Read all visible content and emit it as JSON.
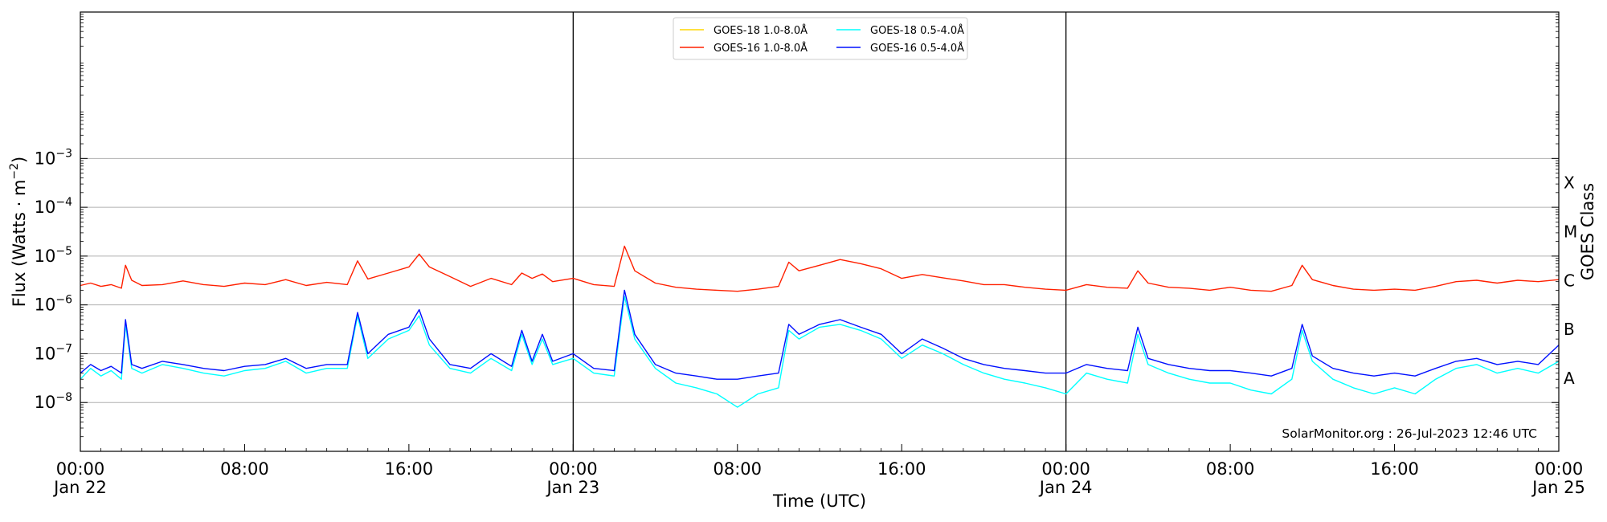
{
  "chart_data": {
    "type": "line",
    "title": "",
    "xlabel": "Time (UTC)",
    "ylabel": "Flux (Watts · m",
    "ylabel_sup": "−2",
    "ylabel_close": ")",
    "y2label": "GOES Class",
    "yscale": "log",
    "ylim_exponents": [
      -9,
      0
    ],
    "xlim_hours": [
      0,
      72
    ],
    "x_ticks": [
      {
        "hour": 0,
        "time": "00:00",
        "date": "Jan 22"
      },
      {
        "hour": 8,
        "time": "08:00",
        "date": ""
      },
      {
        "hour": 16,
        "time": "16:00",
        "date": ""
      },
      {
        "hour": 24,
        "time": "00:00",
        "date": "Jan 23"
      },
      {
        "hour": 32,
        "time": "08:00",
        "date": ""
      },
      {
        "hour": 40,
        "time": "16:00",
        "date": ""
      },
      {
        "hour": 48,
        "time": "00:00",
        "date": "Jan 24"
      },
      {
        "hour": 56,
        "time": "08:00",
        "date": ""
      },
      {
        "hour": 64,
        "time": "16:00",
        "date": ""
      },
      {
        "hour": 72,
        "time": "00:00",
        "date": "Jan 25"
      }
    ],
    "y_ticks": [
      {
        "exp": -8,
        "label": "10",
        "sup": "−8"
      },
      {
        "exp": -7,
        "label": "10",
        "sup": "−7"
      },
      {
        "exp": -6,
        "label": "10",
        "sup": "−6"
      },
      {
        "exp": -5,
        "label": "10",
        "sup": "−5"
      },
      {
        "exp": -4,
        "label": "10",
        "sup": "−4"
      },
      {
        "exp": -3,
        "label": "10",
        "sup": "−3"
      }
    ],
    "goes_classes": [
      {
        "label": "A",
        "exp": -7.5
      },
      {
        "label": "B",
        "exp": -6.5
      },
      {
        "label": "C",
        "exp": -5.5
      },
      {
        "label": "M",
        "exp": -4.5
      },
      {
        "label": "X",
        "exp": -3.5
      }
    ],
    "day_boundaries_hours": [
      24,
      48
    ],
    "grid": true,
    "legend_position": "top-center",
    "credit": "SolarMonitor.org : 26-Jul-2023 12:46 UTC",
    "series": [
      {
        "name": "GOES-18 1.0-8.0Å",
        "color": "#ffd700",
        "points": []
      },
      {
        "name": "GOES-16 1.0-8.0Å",
        "color": "#ff2000",
        "points": [
          [
            0,
            2.5e-06
          ],
          [
            0.5,
            2.8e-06
          ],
          [
            1,
            2.4e-06
          ],
          [
            1.5,
            2.6e-06
          ],
          [
            2,
            2.2e-06
          ],
          [
            2.2,
            6.5e-06
          ],
          [
            2.5,
            3.2e-06
          ],
          [
            3,
            2.5e-06
          ],
          [
            4,
            2.6e-06
          ],
          [
            5,
            3.1e-06
          ],
          [
            6,
            2.6e-06
          ],
          [
            7,
            2.4e-06
          ],
          [
            8,
            2.8e-06
          ],
          [
            9,
            2.6e-06
          ],
          [
            10,
            3.3e-06
          ],
          [
            11,
            2.5e-06
          ],
          [
            12,
            2.9e-06
          ],
          [
            13,
            2.6e-06
          ],
          [
            13.5,
            8e-06
          ],
          [
            14,
            3.4e-06
          ],
          [
            15,
            4.5e-06
          ],
          [
            16,
            6e-06
          ],
          [
            16.5,
            1.1e-05
          ],
          [
            17,
            6e-06
          ],
          [
            18,
            3.8e-06
          ],
          [
            19,
            2.4e-06
          ],
          [
            20,
            3.5e-06
          ],
          [
            21,
            2.6e-06
          ],
          [
            21.5,
            4.5e-06
          ],
          [
            22,
            3.5e-06
          ],
          [
            22.5,
            4.3e-06
          ],
          [
            23,
            3e-06
          ],
          [
            24,
            3.5e-06
          ],
          [
            25,
            2.6e-06
          ],
          [
            26,
            2.4e-06
          ],
          [
            26.5,
            1.6e-05
          ],
          [
            27,
            5e-06
          ],
          [
            28,
            2.8e-06
          ],
          [
            29,
            2.3e-06
          ],
          [
            30,
            2.1e-06
          ],
          [
            31,
            2e-06
          ],
          [
            32,
            1.9e-06
          ],
          [
            33,
            2.1e-06
          ],
          [
            34,
            2.4e-06
          ],
          [
            34.5,
            7.5e-06
          ],
          [
            35,
            5e-06
          ],
          [
            36,
            6.5e-06
          ],
          [
            37,
            8.5e-06
          ],
          [
            38,
            7e-06
          ],
          [
            39,
            5.5e-06
          ],
          [
            40,
            3.5e-06
          ],
          [
            41,
            4.2e-06
          ],
          [
            42,
            3.6e-06
          ],
          [
            43,
            3.1e-06
          ],
          [
            44,
            2.6e-06
          ],
          [
            45,
            2.6e-06
          ],
          [
            46,
            2.3e-06
          ],
          [
            47,
            2.1e-06
          ],
          [
            48,
            2e-06
          ],
          [
            49,
            2.6e-06
          ],
          [
            50,
            2.3e-06
          ],
          [
            51,
            2.2e-06
          ],
          [
            51.5,
            5e-06
          ],
          [
            52,
            2.8e-06
          ],
          [
            53,
            2.3e-06
          ],
          [
            54,
            2.2e-06
          ],
          [
            55,
            2e-06
          ],
          [
            56,
            2.3e-06
          ],
          [
            57,
            2e-06
          ],
          [
            58,
            1.9e-06
          ],
          [
            59,
            2.5e-06
          ],
          [
            59.5,
            6.5e-06
          ],
          [
            60,
            3.3e-06
          ],
          [
            61,
            2.5e-06
          ],
          [
            62,
            2.1e-06
          ],
          [
            63,
            2e-06
          ],
          [
            64,
            2.1e-06
          ],
          [
            65,
            2e-06
          ],
          [
            66,
            2.4e-06
          ],
          [
            67,
            3e-06
          ],
          [
            68,
            3.2e-06
          ],
          [
            69,
            2.8e-06
          ],
          [
            70,
            3.2e-06
          ],
          [
            71,
            3e-06
          ],
          [
            72,
            3.3e-06
          ]
        ]
      },
      {
        "name": "GOES-18 0.5-4.0Å",
        "color": "#00ffff",
        "points": [
          [
            0,
            3e-08
          ],
          [
            0.5,
            5e-08
          ],
          [
            1,
            3.5e-08
          ],
          [
            1.5,
            4.5e-08
          ],
          [
            2,
            3e-08
          ],
          [
            2.2,
            4e-07
          ],
          [
            2.5,
            5e-08
          ],
          [
            3,
            4e-08
          ],
          [
            4,
            6e-08
          ],
          [
            5,
            5e-08
          ],
          [
            6,
            4e-08
          ],
          [
            7,
            3.5e-08
          ],
          [
            8,
            4.5e-08
          ],
          [
            9,
            5e-08
          ],
          [
            10,
            7e-08
          ],
          [
            11,
            4e-08
          ],
          [
            12,
            5e-08
          ],
          [
            13,
            5e-08
          ],
          [
            13.5,
            6e-07
          ],
          [
            14,
            8e-08
          ],
          [
            15,
            2e-07
          ],
          [
            16,
            3e-07
          ],
          [
            16.5,
            6e-07
          ],
          [
            17,
            1.5e-07
          ],
          [
            18,
            5e-08
          ],
          [
            19,
            4e-08
          ],
          [
            20,
            8e-08
          ],
          [
            21,
            4.5e-08
          ],
          [
            21.5,
            2.5e-07
          ],
          [
            22,
            6e-08
          ],
          [
            22.5,
            2e-07
          ],
          [
            23,
            6e-08
          ],
          [
            24,
            8e-08
          ],
          [
            25,
            4e-08
          ],
          [
            26,
            3.5e-08
          ],
          [
            26.5,
            1.5e-06
          ],
          [
            27,
            2e-07
          ],
          [
            28,
            5e-08
          ],
          [
            29,
            2.5e-08
          ],
          [
            30,
            2e-08
          ],
          [
            31,
            1.5e-08
          ],
          [
            32,
            8e-09
          ],
          [
            33,
            1.5e-08
          ],
          [
            34,
            2e-08
          ],
          [
            34.5,
            3e-07
          ],
          [
            35,
            2e-07
          ],
          [
            36,
            3.5e-07
          ],
          [
            37,
            4e-07
          ],
          [
            38,
            3e-07
          ],
          [
            39,
            2e-07
          ],
          [
            40,
            8e-08
          ],
          [
            41,
            1.5e-07
          ],
          [
            42,
            1e-07
          ],
          [
            43,
            6e-08
          ],
          [
            44,
            4e-08
          ],
          [
            45,
            3e-08
          ],
          [
            46,
            2.5e-08
          ],
          [
            47,
            2e-08
          ],
          [
            48,
            1.5e-08
          ],
          [
            49,
            4e-08
          ],
          [
            50,
            3e-08
          ],
          [
            51,
            2.5e-08
          ],
          [
            51.5,
            2.5e-07
          ],
          [
            52,
            6e-08
          ],
          [
            53,
            4e-08
          ],
          [
            54,
            3e-08
          ],
          [
            55,
            2.5e-08
          ],
          [
            56,
            2.5e-08
          ],
          [
            57,
            1.8e-08
          ],
          [
            58,
            1.5e-08
          ],
          [
            59,
            3e-08
          ],
          [
            59.5,
            3e-07
          ],
          [
            60,
            7e-08
          ],
          [
            61,
            3e-08
          ],
          [
            62,
            2e-08
          ],
          [
            63,
            1.5e-08
          ],
          [
            64,
            2e-08
          ],
          [
            65,
            1.5e-08
          ],
          [
            66,
            3e-08
          ],
          [
            67,
            5e-08
          ],
          [
            68,
            6e-08
          ],
          [
            69,
            4e-08
          ],
          [
            70,
            5e-08
          ],
          [
            71,
            4e-08
          ],
          [
            72,
            7e-08
          ]
        ]
      },
      {
        "name": "GOES-16 0.5-4.0Å",
        "color": "#0010ff",
        "points": [
          [
            0,
            4e-08
          ],
          [
            0.5,
            6e-08
          ],
          [
            1,
            4.5e-08
          ],
          [
            1.5,
            5.5e-08
          ],
          [
            2,
            4e-08
          ],
          [
            2.2,
            5e-07
          ],
          [
            2.5,
            6e-08
          ],
          [
            3,
            5e-08
          ],
          [
            4,
            7e-08
          ],
          [
            5,
            6e-08
          ],
          [
            6,
            5e-08
          ],
          [
            7,
            4.5e-08
          ],
          [
            8,
            5.5e-08
          ],
          [
            9,
            6e-08
          ],
          [
            10,
            8e-08
          ],
          [
            11,
            5e-08
          ],
          [
            12,
            6e-08
          ],
          [
            13,
            6e-08
          ],
          [
            13.5,
            7e-07
          ],
          [
            14,
            1e-07
          ],
          [
            15,
            2.5e-07
          ],
          [
            16,
            3.5e-07
          ],
          [
            16.5,
            8e-07
          ],
          [
            17,
            2e-07
          ],
          [
            18,
            6e-08
          ],
          [
            19,
            5e-08
          ],
          [
            20,
            1e-07
          ],
          [
            21,
            5.5e-08
          ],
          [
            21.5,
            3e-07
          ],
          [
            22,
            7e-08
          ],
          [
            22.5,
            2.5e-07
          ],
          [
            23,
            7e-08
          ],
          [
            24,
            1e-07
          ],
          [
            25,
            5e-08
          ],
          [
            26,
            4.5e-08
          ],
          [
            26.5,
            2e-06
          ],
          [
            27,
            2.5e-07
          ],
          [
            28,
            6e-08
          ],
          [
            29,
            4e-08
          ],
          [
            30,
            3.5e-08
          ],
          [
            31,
            3e-08
          ],
          [
            32,
            3e-08
          ],
          [
            33,
            3.5e-08
          ],
          [
            34,
            4e-08
          ],
          [
            34.5,
            4e-07
          ],
          [
            35,
            2.5e-07
          ],
          [
            36,
            4e-07
          ],
          [
            37,
            5e-07
          ],
          [
            38,
            3.5e-07
          ],
          [
            39,
            2.5e-07
          ],
          [
            40,
            1e-07
          ],
          [
            41,
            2e-07
          ],
          [
            42,
            1.3e-07
          ],
          [
            43,
            8e-08
          ],
          [
            44,
            6e-08
          ],
          [
            45,
            5e-08
          ],
          [
            46,
            4.5e-08
          ],
          [
            47,
            4e-08
          ],
          [
            48,
            4e-08
          ],
          [
            49,
            6e-08
          ],
          [
            50,
            5e-08
          ],
          [
            51,
            4.5e-08
          ],
          [
            51.5,
            3.5e-07
          ],
          [
            52,
            8e-08
          ],
          [
            53,
            6e-08
          ],
          [
            54,
            5e-08
          ],
          [
            55,
            4.5e-08
          ],
          [
            56,
            4.5e-08
          ],
          [
            57,
            4e-08
          ],
          [
            58,
            3.5e-08
          ],
          [
            59,
            5e-08
          ],
          [
            59.5,
            4e-07
          ],
          [
            60,
            9e-08
          ],
          [
            61,
            5e-08
          ],
          [
            62,
            4e-08
          ],
          [
            63,
            3.5e-08
          ],
          [
            64,
            4e-08
          ],
          [
            65,
            3.5e-08
          ],
          [
            66,
            5e-08
          ],
          [
            67,
            7e-08
          ],
          [
            68,
            8e-08
          ],
          [
            69,
            6e-08
          ],
          [
            70,
            7e-08
          ],
          [
            71,
            6e-08
          ],
          [
            72,
            1.5e-07
          ]
        ]
      }
    ]
  }
}
